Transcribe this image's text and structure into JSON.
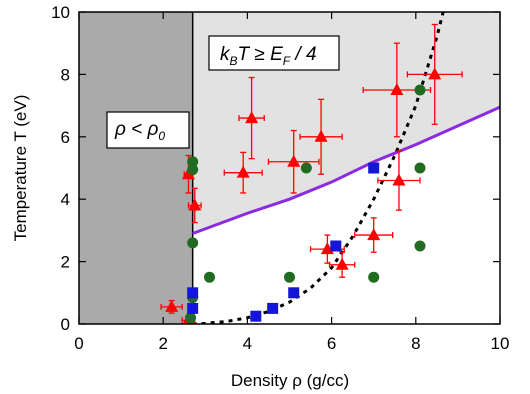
{
  "chart_data": {
    "type": "scatter",
    "xlabel": "Density ρ (g/cc)",
    "ylabel": "Temperature T (eV)",
    "xlim": [
      0,
      10
    ],
    "ylim": [
      0,
      10
    ],
    "xticks": [
      0,
      2,
      4,
      6,
      8,
      10
    ],
    "yticks": [
      0,
      2,
      4,
      6,
      8,
      10
    ],
    "grid": false,
    "regions": {
      "rho_below_rho0": {
        "label_main": "ρ < ρ",
        "label_sub": "0",
        "x_max": 2.7,
        "color": "#aaaaaa"
      },
      "degeneracy": {
        "label_kb": "k",
        "label_b": "B",
        "label_mid": "T ≥ E",
        "label_f": "F",
        "label_end": " / 4",
        "color": "#e2e2e2"
      }
    },
    "purple_line": {
      "color": "#8a2be2",
      "points": [
        [
          2.7,
          2.9
        ],
        [
          4,
          3.55
        ],
        [
          5,
          4.0
        ],
        [
          6,
          4.55
        ],
        [
          7,
          5.2
        ],
        [
          8,
          5.75
        ],
        [
          9,
          6.35
        ],
        [
          10,
          6.95
        ]
      ]
    },
    "dashed_curve": {
      "color": "#000000",
      "points": [
        [
          2.7,
          0
        ],
        [
          3.0,
          0.02
        ],
        [
          3.5,
          0.08
        ],
        [
          4.0,
          0.2
        ],
        [
          4.5,
          0.4
        ],
        [
          5.0,
          0.7
        ],
        [
          5.5,
          1.15
        ],
        [
          6.0,
          1.8
        ],
        [
          6.5,
          2.8
        ],
        [
          7.0,
          4.0
        ],
        [
          7.5,
          5.4
        ],
        [
          8.0,
          7.0
        ],
        [
          8.5,
          9.2
        ],
        [
          8.65,
          10
        ]
      ]
    },
    "series": [
      {
        "marker": "triangle",
        "color": "#ff0000",
        "points": [
          {
            "x": 2.2,
            "y": 0.55,
            "xerr": 0.25,
            "yerr": 0.2
          },
          {
            "x": 2.6,
            "y": 0.12,
            "xerr": 0.15,
            "yerr": 0.12
          },
          {
            "x": 2.6,
            "y": 4.8,
            "xerr": 0.1,
            "yerr": 0.6
          },
          {
            "x": 2.75,
            "y": 3.8,
            "xerr": 0.15,
            "yerr": 0.55
          },
          {
            "x": 3.9,
            "y": 4.85,
            "xerr": 0.45,
            "yerr": 0.65
          },
          {
            "x": 4.1,
            "y": 6.6,
            "xerr": 0.3,
            "yerr": 1.3
          },
          {
            "x": 5.1,
            "y": 5.2,
            "xerr": 0.6,
            "yerr": 1.0
          },
          {
            "x": 5.75,
            "y": 6.0,
            "xerr": 0.5,
            "yerr": 1.2
          },
          {
            "x": 5.9,
            "y": 2.4,
            "xerr": 0.4,
            "yerr": 0.45
          },
          {
            "x": 6.25,
            "y": 1.9,
            "xerr": 0.3,
            "yerr": 0.4
          },
          {
            "x": 7.0,
            "y": 2.85,
            "xerr": 0.45,
            "yerr": 0.55
          },
          {
            "x": 7.55,
            "y": 7.5,
            "xerr": 0.8,
            "yerr": 1.5
          },
          {
            "x": 7.6,
            "y": 4.6,
            "xerr": 0.5,
            "yerr": 0.95
          },
          {
            "x": 8.45,
            "y": 8.0,
            "xerr": 0.65,
            "yerr": 1.6
          }
        ]
      },
      {
        "marker": "circle",
        "color": "#226b22",
        "points": [
          {
            "x": 2.7,
            "y": 5.2
          },
          {
            "x": 2.7,
            "y": 4.95
          },
          {
            "x": 2.7,
            "y": 2.6
          },
          {
            "x": 2.7,
            "y": 0.85
          },
          {
            "x": 2.65,
            "y": 0.2
          },
          {
            "x": 3.1,
            "y": 1.5
          },
          {
            "x": 5.0,
            "y": 1.5
          },
          {
            "x": 5.4,
            "y": 5.0
          },
          {
            "x": 7.0,
            "y": 1.5
          },
          {
            "x": 8.1,
            "y": 7.5
          },
          {
            "x": 8.1,
            "y": 5.0
          },
          {
            "x": 8.1,
            "y": 2.5
          }
        ]
      },
      {
        "marker": "square",
        "color": "#1515d5",
        "points": [
          {
            "x": 2.7,
            "y": 1.0
          },
          {
            "x": 2.7,
            "y": 0.5
          },
          {
            "x": 4.2,
            "y": 0.25
          },
          {
            "x": 4.6,
            "y": 0.5
          },
          {
            "x": 5.1,
            "y": 1.0
          },
          {
            "x": 6.1,
            "y": 2.5
          },
          {
            "x": 7.0,
            "y": 5.0
          }
        ]
      }
    ]
  }
}
